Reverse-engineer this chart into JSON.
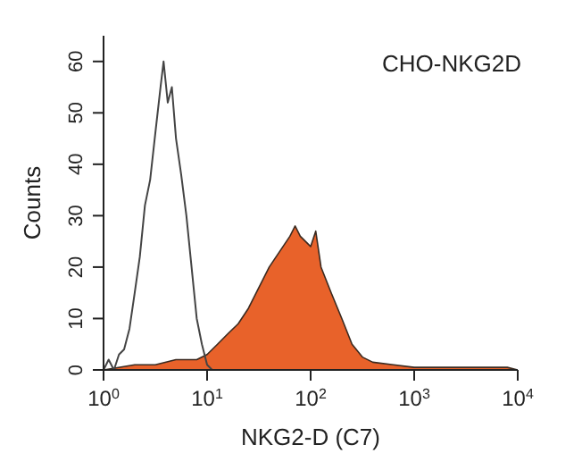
{
  "chart_data": {
    "type": "area",
    "xlabel": "NKG2-D (C7)",
    "ylabel": "Counts",
    "annotations": [
      "CHO-NKG2D"
    ],
    "log": "x",
    "grid": false,
    "legend": false,
    "marker": "none",
    "xlim": [
      1,
      10000
    ],
    "xticks": [
      {
        "value": 1,
        "label": "10$^{0}$"
      },
      {
        "value": 10,
        "label": "10$^{1}$"
      },
      {
        "value": 100,
        "label": "10$^{2}$"
      },
      {
        "value": 1000,
        "label": "10$^{3}$"
      },
      {
        "value": 10000,
        "label": "10$^{4}$"
      }
    ],
    "ylim": [
      0,
      65
    ],
    "yticks": [
      0,
      10,
      20,
      30,
      40,
      50,
      60
    ],
    "series": [
      {
        "type": "line",
        "color": "#444444",
        "x": [
          1,
          1.12,
          1.26,
          1.41,
          1.58,
          1.78,
          2.0,
          2.24,
          2.51,
          2.82,
          3.16,
          3.55,
          3.8,
          4.17,
          4.57,
          5.01,
          5.62,
          6.31,
          7.08,
          7.94,
          8.91,
          10,
          11.2
        ],
        "values": [
          0,
          2,
          0,
          3,
          4,
          8,
          15,
          22,
          32,
          37,
          46,
          55,
          60,
          52,
          55,
          45,
          38,
          30,
          20,
          10,
          5,
          1,
          0
        ]
      },
      {
        "color": "#e8622a",
        "x": [
          1,
          2,
          3.16,
          5,
          7.94,
          10,
          12.6,
          15.8,
          20,
          25.1,
          31.6,
          39.8,
          50.1,
          63.1,
          70.8,
          79.4,
          100,
          112,
          126,
          158,
          200,
          251,
          316,
          398,
          631,
          1000,
          3162,
          7943,
          10000
        ],
        "values": [
          0,
          1,
          1,
          2,
          2,
          3,
          5,
          7,
          9,
          12,
          16,
          20,
          23,
          26,
          28,
          26,
          24,
          27,
          20,
          15,
          10,
          5,
          2.5,
          1.5,
          1,
          0.5,
          0.5,
          0.5,
          0
        ]
      }
    ]
  }
}
